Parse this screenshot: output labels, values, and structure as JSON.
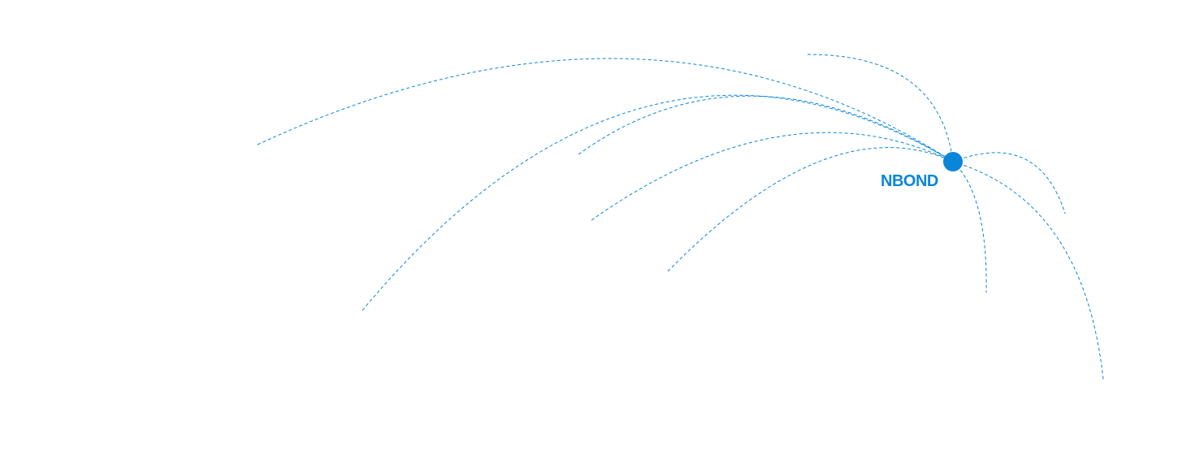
{
  "brand": {
    "label": "NBOND"
  },
  "colors": {
    "accent": "#0a86d9",
    "background": "#ffffff"
  },
  "network": {
    "hub": "NBOND",
    "connection_count": 9,
    "line_style": "dashed"
  }
}
